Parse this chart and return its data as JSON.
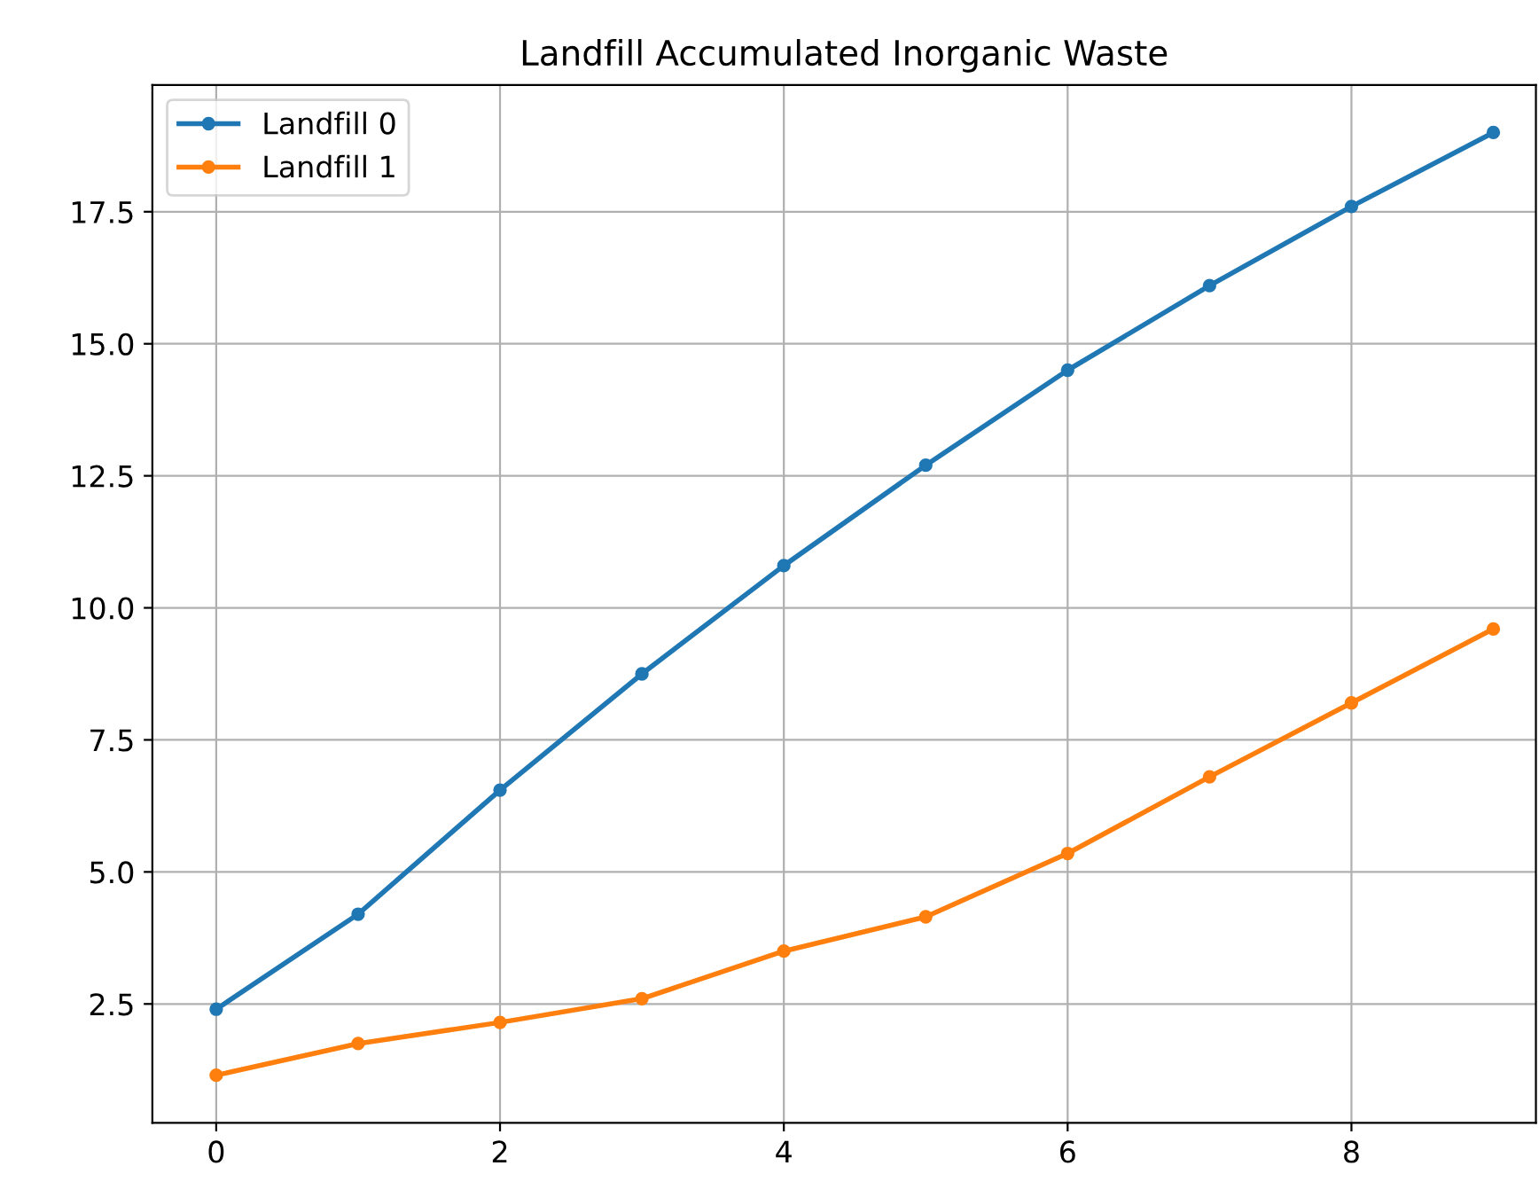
{
  "chart_data": {
    "type": "line",
    "title": "Landfill Accumulated Inorganic Waste",
    "x": [
      0,
      1,
      2,
      3,
      4,
      5,
      6,
      7,
      8,
      9
    ],
    "series": [
      {
        "name": "Landfill 0",
        "color": "#1f77b4",
        "values": [
          2.4,
          4.2,
          6.55,
          8.75,
          10.8,
          12.7,
          14.5,
          16.1,
          17.6,
          19.0
        ]
      },
      {
        "name": "Landfill 1",
        "color": "#ff7f0e",
        "values": [
          1.15,
          1.75,
          2.15,
          2.6,
          3.5,
          4.15,
          5.35,
          6.8,
          8.2,
          9.6
        ]
      }
    ],
    "xlim": [
      -0.45,
      9.3
    ],
    "ylim": [
      0.25,
      19.9
    ],
    "xticks": [
      0,
      2,
      4,
      6,
      8
    ],
    "yticks": [
      2.5,
      {
        "value": 5,
        "label": "5.0"
      },
      7.5,
      {
        "value": 10,
        "label": "10.0"
      },
      12.5,
      {
        "value": 15,
        "label": "15.0"
      },
      17.5
    ],
    "grid": true,
    "legend": "top left",
    "marker": "circle",
    "line_style": "solid"
  }
}
